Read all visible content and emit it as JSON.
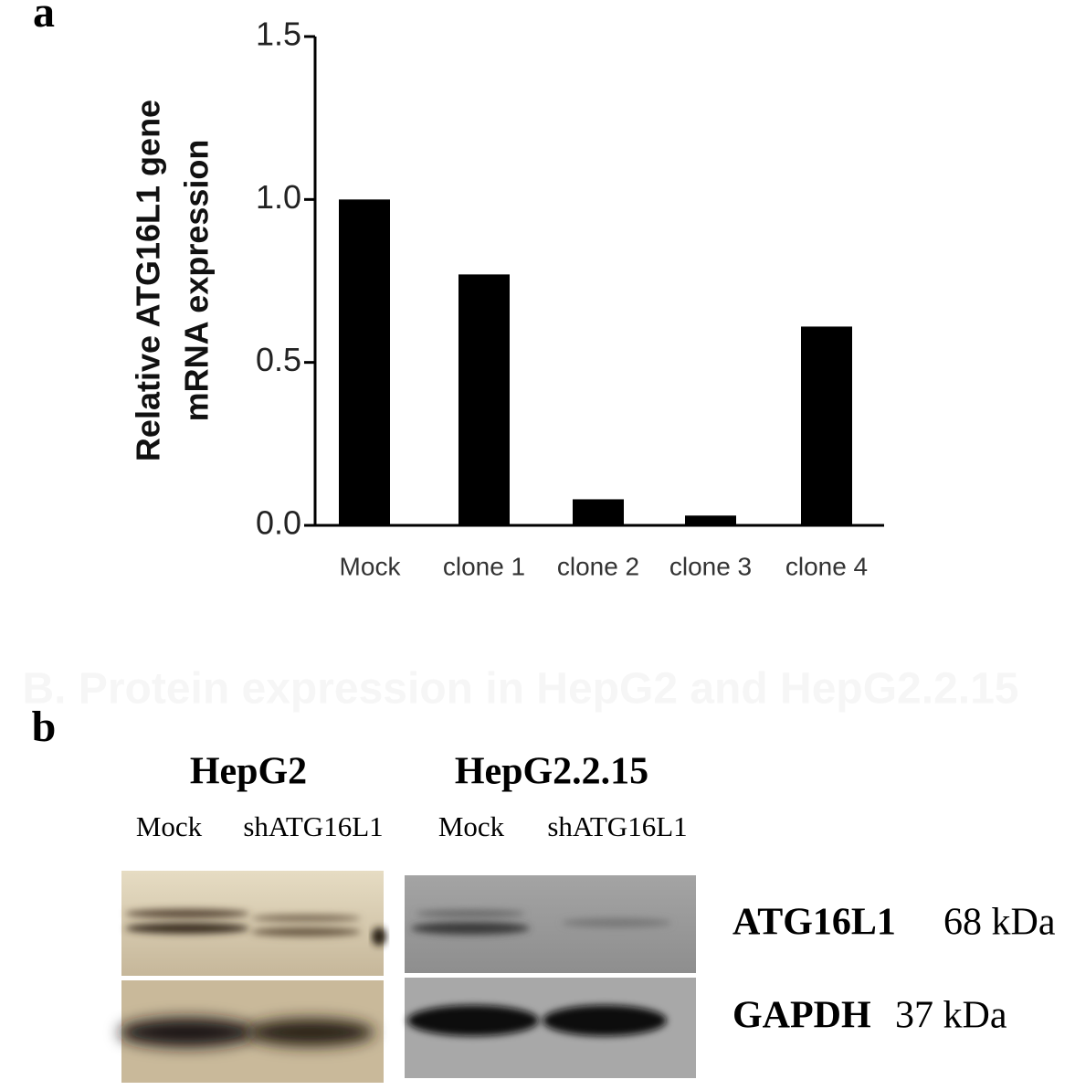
{
  "panel_labels": [
    "a",
    "b"
  ],
  "faint_heading": "B. Protein expression in HepG2 and HepG2.2.15",
  "chart_data": {
    "type": "bar",
    "ylabel": [
      "Relative ATG16L1 gene",
      "mRNA expression"
    ],
    "categories": [
      "Mock",
      "clone 1",
      "clone 2",
      "clone 3",
      "clone 4"
    ],
    "values": [
      1.0,
      0.77,
      0.08,
      0.03,
      0.61
    ],
    "color": "#000000",
    "ylim": [
      0,
      1.5
    ],
    "yticks": [
      {
        "value": 0,
        "label": "0.0"
      },
      0.5,
      {
        "value": 1,
        "label": "1.0"
      },
      1.5
    ],
    "grid": false
  },
  "blot": {
    "cell_lines": [
      {
        "name": "HepG2",
        "lanes": [
          "Mock",
          "shATG16L1"
        ]
      },
      {
        "name": "HepG2.2.15",
        "lanes": [
          "Mock",
          "shATG16L1"
        ]
      }
    ],
    "proteins": [
      {
        "name": "ATG16L1",
        "size": "68 kDa"
      },
      {
        "name": "GAPDH",
        "size": "37 kDa"
      }
    ]
  }
}
